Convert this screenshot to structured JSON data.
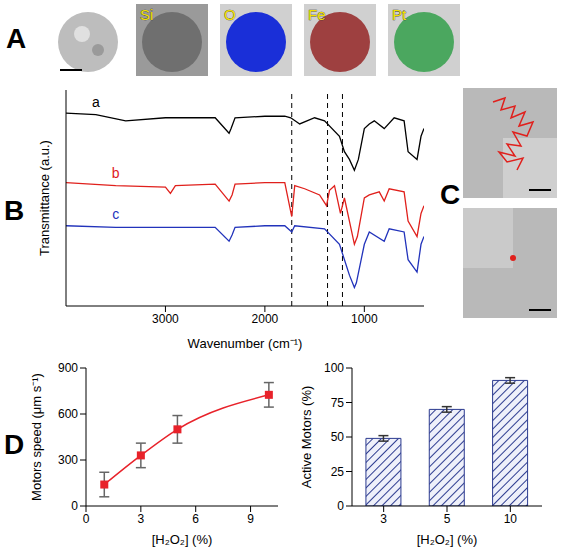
{
  "panel_letters": [
    "A",
    "B",
    "C",
    "D"
  ],
  "element_maps": [
    "Si",
    "O",
    "Fe",
    "Pt"
  ],
  "chart_data": [
    {
      "type": "line",
      "x_label": "Wavenumber (cm⁻¹)",
      "y_label": "Transmittance (a.u.)",
      "xlim": [
        4000,
        400
      ],
      "xticks": [
        1000,
        2000,
        3000
      ],
      "ylim": [
        0,
        140
      ],
      "tick_labels": "x",
      "reference_lines": [
        1730,
        1370,
        1220
      ],
      "series": [
        {
          "name": "a",
          "color": "#000000",
          "x": [
            4000,
            3700,
            3400,
            3000,
            2500,
            2360,
            2340,
            2300,
            2000,
            1800,
            1740,
            1650,
            1500,
            1400,
            1250,
            1200,
            1150,
            1100,
            1060,
            1000,
            950,
            900,
            800,
            700,
            600,
            560,
            470,
            430,
            400
          ],
          "values": [
            125,
            124,
            120,
            122,
            122,
            112,
            115,
            122,
            123,
            123,
            122,
            118,
            122,
            120,
            110,
            100,
            95,
            88,
            95,
            115,
            118,
            120,
            115,
            122,
            120,
            100,
            95,
            110,
            115
          ]
        },
        {
          "name": "b",
          "color": "#e0201c",
          "x": [
            4000,
            3500,
            3000,
            2950,
            2900,
            2500,
            2360,
            2330,
            2300,
            2000,
            1800,
            1730,
            1700,
            1600,
            1450,
            1380,
            1350,
            1300,
            1240,
            1200,
            1150,
            1100,
            1070,
            1000,
            950,
            850,
            800,
            750,
            600,
            560,
            470,
            430,
            400
          ],
          "values": [
            80,
            78,
            77,
            73,
            78,
            79,
            68,
            72,
            79,
            80,
            80,
            58,
            78,
            76,
            72,
            65,
            75,
            78,
            60,
            70,
            55,
            40,
            45,
            70,
            72,
            74,
            68,
            76,
            74,
            55,
            45,
            60,
            65
          ]
        },
        {
          "name": "c",
          "color": "#2233bb",
          "x": [
            4000,
            3500,
            3000,
            2500,
            2360,
            2330,
            2300,
            2000,
            1800,
            1730,
            1700,
            1400,
            1250,
            1200,
            1150,
            1100,
            1080,
            1000,
            950,
            800,
            750,
            600,
            560,
            470,
            430,
            400
          ],
          "values": [
            52,
            51,
            51,
            51,
            42,
            46,
            51,
            52,
            52,
            48,
            52,
            50,
            40,
            30,
            20,
            12,
            15,
            40,
            48,
            42,
            50,
            48,
            30,
            22,
            40,
            45
          ]
        }
      ]
    },
    {
      "type": "line",
      "x_label": "[H₂O₂] (%)",
      "y_label": "Motors speed (μm s⁻¹)",
      "x": [
        1,
        3,
        5,
        10
      ],
      "values": [
        140,
        330,
        500,
        725
      ],
      "errors": [
        80,
        80,
        90,
        80
      ],
      "color": "#e8222a",
      "marker": "square",
      "xlim": [
        0,
        10.5
      ],
      "xticks": [
        0,
        3,
        6,
        9
      ],
      "ylim": [
        0,
        900
      ],
      "yticks": [
        0,
        300,
        600,
        900
      ]
    },
    {
      "type": "bar",
      "x_label": "[H₂O₂] (%)",
      "y_label": "Active Motors (%)",
      "categories": [
        "3",
        "5",
        "10"
      ],
      "values": [
        49,
        70,
        91
      ],
      "errors": [
        2,
        2,
        2
      ],
      "color": "#2b3a8f",
      "ylim": [
        0,
        100
      ],
      "yticks": [
        0,
        25,
        50,
        75,
        100
      ]
    }
  ]
}
